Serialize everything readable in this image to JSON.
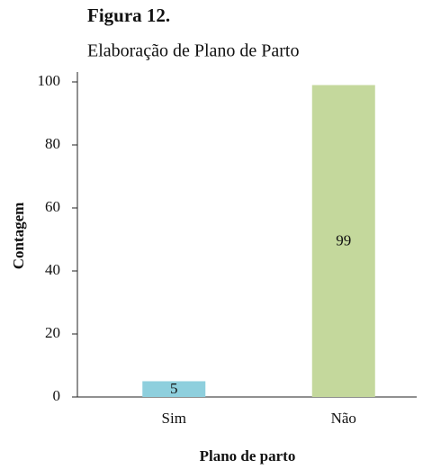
{
  "chart_data": {
    "type": "bar",
    "title": "Figura 12.",
    "subtitle": "Elaboração de Plano de Parto",
    "x_label": "Plano de parto",
    "y_label": "Contagem",
    "categories": [
      "Sim",
      "Não"
    ],
    "values": [
      5,
      99
    ],
    "colors": [
      "#8ecfdd",
      "#c4d89c"
    ],
    "ylim": [
      0,
      100
    ],
    "yticks": [
      0,
      20,
      40,
      60,
      80,
      100
    ],
    "grid": false
  }
}
